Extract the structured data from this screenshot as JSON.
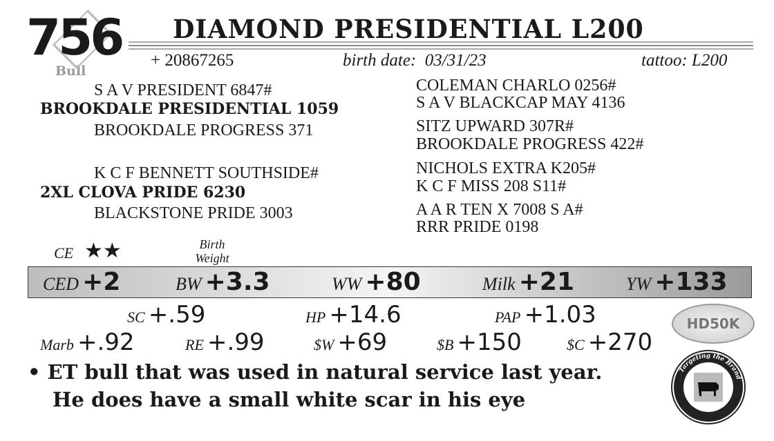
{
  "lot": {
    "number": "756",
    "category": "Bull"
  },
  "animal": {
    "name": "DIAMOND PRESIDENTIAL L200",
    "registration": "+ 20867265",
    "birth_date_label": "birth date:",
    "birth_date": "03/31/23",
    "tattoo_label": "tattoo:",
    "tattoo": "L200"
  },
  "pedigree": {
    "sire": "BROOKDALE PRESIDENTIAL 1059",
    "sire_sire": "S A V PRESIDENT 6847#",
    "sire_dam": "BROOKDALE PROGRESS 371",
    "sss": "COLEMAN CHARLO 0256#",
    "ssd": "S A V BLACKCAP MAY 4136",
    "sds": "SITZ UPWARD 307R#",
    "sdd": "BROOKDALE PROGRESS 422#",
    "dam": "2XL CLOVA PRIDE 6230",
    "dam_sire": "K C F BENNETT SOUTHSIDE#",
    "dam_dam": "BLACKSTONE PRIDE 3003",
    "dss": "NICHOLS EXTRA K205#",
    "dsd": "K C F MISS 208 S11#",
    "dds": "A A R TEN X 7008 S A#",
    "ddd": "RRR PRIDE 0198"
  },
  "ratings": {
    "ce_label": "CE",
    "ce_stars": "★★",
    "ce_star_count": 2,
    "bw_label_1": "Birth",
    "bw_label_2": "Weight"
  },
  "epds_main": [
    {
      "label": "CED",
      "value": "+2"
    },
    {
      "label": "BW",
      "value": "+3.3"
    },
    {
      "label": "WW",
      "value": "+80"
    },
    {
      "label": "Milk",
      "value": "+21"
    },
    {
      "label": "YW",
      "value": "+133"
    }
  ],
  "epds_row1": [
    {
      "label": "SC",
      "value": "+.59"
    },
    {
      "label": "HP",
      "value": "+14.6"
    },
    {
      "label": "PAP",
      "value": "+1.03"
    }
  ],
  "epds_row2": [
    {
      "label": "Marb",
      "value": "+.92"
    },
    {
      "label": "RE",
      "value": "+.99"
    },
    {
      "label": "$W",
      "value": "+69"
    },
    {
      "label": "$B",
      "value": "+150"
    },
    {
      "label": "$C",
      "value": "+270"
    }
  ],
  "notes": {
    "line1": "• ET bull that was used in natural service last year.",
    "line2": "He does have a small white scar in his eye"
  },
  "badges": {
    "hd50k": "HD50K",
    "cab_text": "Targeting the Brand"
  }
}
